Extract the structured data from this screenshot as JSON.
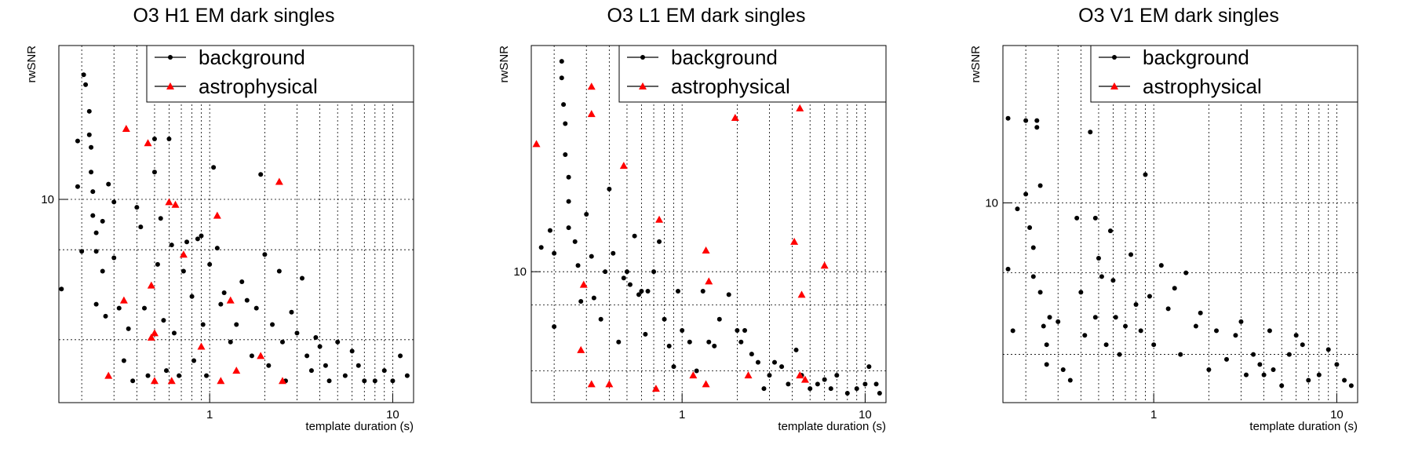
{
  "chart_data": [
    {
      "type": "scatter",
      "title": "O3 H1 EM dark singles",
      "xlabel": "template duration (s)",
      "ylabel": "rwSNR",
      "xscale": "log",
      "yscale": "log",
      "xlim": [
        0.15,
        13
      ],
      "ylim": [
        4.6,
        18
      ],
      "xticks": [
        {
          "value": 1,
          "label": "1"
        },
        {
          "value": 10,
          "label": "10"
        }
      ],
      "yticks": [
        {
          "value": 10,
          "label": "10"
        }
      ],
      "extra_ygrid": [
        8.25,
        5.85
      ],
      "grid": true,
      "legend_position": "top-right",
      "series": [
        {
          "name": "background",
          "marker": "circle",
          "color": "#000000",
          "x": [
            0.155,
            0.19,
            0.19,
            0.2,
            0.205,
            0.21,
            0.22,
            0.22,
            0.225,
            0.225,
            0.23,
            0.23,
            0.24,
            0.24,
            0.24,
            0.26,
            0.26,
            0.27,
            0.28,
            0.3,
            0.3,
            0.32,
            0.34,
            0.36,
            0.38,
            0.4,
            0.42,
            0.44,
            0.46,
            0.5,
            0.5,
            0.52,
            0.54,
            0.56,
            0.58,
            0.6,
            0.62,
            0.64,
            0.68,
            0.72,
            0.75,
            0.8,
            0.82,
            0.86,
            0.9,
            0.92,
            0.96,
            1.0,
            1.05,
            1.1,
            1.15,
            1.2,
            1.3,
            1.4,
            1.5,
            1.6,
            1.7,
            1.8,
            1.9,
            2.0,
            2.1,
            2.2,
            2.4,
            2.5,
            2.6,
            2.8,
            3.0,
            3.2,
            3.4,
            3.6,
            3.8,
            4.0,
            4.3,
            4.5,
            5.0,
            5.5,
            6.0,
            6.5,
            7.0,
            8.0,
            9.0,
            10.0,
            11.0,
            12.0
          ],
          "y": [
            7.1,
            12.5,
            10.5,
            8.2,
            16.1,
            15.5,
            14.0,
            12.8,
            12.2,
            11.1,
            10.3,
            9.4,
            8.8,
            8.2,
            6.7,
            9.2,
            7.6,
            6.4,
            10.6,
            9.9,
            8.0,
            6.6,
            5.4,
            6.1,
            5.0,
            9.7,
            9.0,
            6.6,
            5.1,
            12.6,
            11.1,
            7.8,
            9.3,
            6.3,
            5.2,
            12.6,
            8.4,
            6.0,
            5.1,
            7.6,
            8.5,
            6.9,
            5.4,
            8.6,
            8.7,
            6.2,
            5.1,
            7.8,
            11.3,
            8.3,
            6.7,
            7.0,
            5.8,
            6.2,
            7.3,
            6.8,
            5.5,
            6.6,
            11.0,
            8.1,
            5.3,
            6.2,
            7.6,
            5.8,
            5.0,
            6.5,
            6.0,
            7.4,
            5.5,
            5.2,
            5.9,
            5.7,
            5.3,
            5.0,
            5.8,
            5.1,
            5.6,
            5.3,
            5.0,
            5.0,
            5.2,
            5.0,
            5.5,
            5.1
          ]
        },
        {
          "name": "astrophysical",
          "marker": "triangle",
          "color": "#ff0000",
          "x": [
            0.28,
            0.35,
            0.34,
            0.46,
            0.48,
            0.5,
            0.48,
            0.5,
            0.6,
            0.62,
            0.65,
            0.72,
            0.9,
            1.1,
            1.15,
            1.3,
            1.4,
            1.9,
            2.4,
            2.5
          ],
          "y": [
            5.1,
            13.1,
            6.8,
            12.4,
            7.2,
            6.0,
            5.9,
            5.0,
            9.9,
            5.0,
            9.8,
            8.1,
            5.7,
            9.4,
            5.0,
            6.8,
            5.2,
            5.5,
            10.7,
            5.0
          ]
        }
      ]
    },
    {
      "type": "scatter",
      "title": "O3 L1 EM dark singles",
      "xlabel": "template duration (s)",
      "ylabel": "rwSNR",
      "xscale": "log",
      "yscale": "log",
      "xlim": [
        0.15,
        13
      ],
      "ylim": [
        6.6,
        20.5
      ],
      "xticks": [
        {
          "value": 1,
          "label": "1"
        },
        {
          "value": 10,
          "label": "10"
        }
      ],
      "yticks": [
        {
          "value": 10,
          "label": "10"
        }
      ],
      "extra_ygrid": [
        9.0,
        7.3
      ],
      "grid": true,
      "legend_position": "top-right",
      "series": [
        {
          "name": "background",
          "marker": "circle",
          "color": "#000000",
          "x": [
            0.17,
            0.19,
            0.2,
            0.2,
            0.22,
            0.22,
            0.225,
            0.23,
            0.23,
            0.24,
            0.24,
            0.24,
            0.26,
            0.27,
            0.28,
            0.3,
            0.32,
            0.33,
            0.36,
            0.38,
            0.4,
            0.42,
            0.45,
            0.48,
            0.5,
            0.52,
            0.55,
            0.58,
            0.6,
            0.63,
            0.65,
            0.7,
            0.75,
            0.8,
            0.85,
            0.9,
            0.95,
            1.0,
            1.1,
            1.2,
            1.3,
            1.4,
            1.5,
            1.6,
            1.8,
            2.0,
            2.1,
            2.2,
            2.4,
            2.6,
            2.8,
            3.0,
            3.2,
            3.5,
            3.8,
            4.2,
            4.5,
            5.0,
            5.5,
            6.0,
            6.5,
            7.0,
            8.0,
            9.0,
            10.0,
            10.5,
            11.5,
            12.0
          ],
          "y": [
            10.8,
            11.4,
            10.6,
            8.4,
            19.5,
            18.5,
            17.0,
            16.0,
            14.5,
            13.5,
            12.5,
            11.5,
            11.0,
            10.2,
            9.1,
            12.0,
            10.5,
            9.2,
            8.6,
            10.0,
            13.0,
            10.6,
            8.0,
            9.8,
            10.0,
            9.6,
            11.2,
            9.3,
            9.4,
            8.2,
            9.4,
            10.0,
            11.0,
            8.6,
            7.9,
            7.4,
            9.4,
            8.3,
            8.0,
            7.3,
            9.4,
            8.0,
            7.9,
            8.6,
            9.3,
            8.3,
            8.0,
            8.3,
            7.7,
            7.5,
            6.9,
            7.2,
            7.5,
            7.4,
            7.0,
            7.8,
            7.2,
            6.9,
            7.0,
            7.1,
            6.9,
            7.2,
            6.8,
            6.9,
            7.0,
            7.4,
            7.0,
            6.8
          ]
        },
        {
          "name": "astrophysical",
          "marker": "triangle",
          "color": "#ff0000",
          "x": [
            0.16,
            0.29,
            0.32,
            0.32,
            0.32,
            0.28,
            0.4,
            0.48,
            0.75,
            0.72,
            1.15,
            1.35,
            1.4,
            1.35,
            1.95,
            2.3,
            4.1,
            4.4,
            4.5,
            4.4,
            4.7,
            6.0
          ],
          "y": [
            15.0,
            9.6,
            18.0,
            16.5,
            7.0,
            7.8,
            7.0,
            14.0,
            11.8,
            6.9,
            7.2,
            10.7,
            9.7,
            7.0,
            16.3,
            7.2,
            11.0,
            16.8,
            9.3,
            7.2,
            7.1,
            10.2
          ]
        }
      ]
    },
    {
      "type": "scatter",
      "title": "O3 V1 EM dark singles",
      "xlabel": "template duration (s)",
      "ylabel": "rwSNR",
      "xscale": "log",
      "yscale": "log",
      "xlim": [
        0.15,
        13
      ],
      "ylim": [
        5.1,
        17
      ],
      "xticks": [
        {
          "value": 1,
          "label": "1"
        },
        {
          "value": 10,
          "label": "10"
        }
      ],
      "yticks": [
        {
          "value": 10,
          "label": "10"
        }
      ],
      "extra_ygrid": [
        7.9,
        6.0
      ],
      "grid": true,
      "legend_position": "top-right",
      "series": [
        {
          "name": "background",
          "marker": "circle",
          "color": "#000000",
          "x": [
            0.16,
            0.16,
            0.17,
            0.18,
            0.2,
            0.2,
            0.21,
            0.22,
            0.22,
            0.23,
            0.23,
            0.24,
            0.24,
            0.25,
            0.26,
            0.26,
            0.27,
            0.3,
            0.32,
            0.35,
            0.38,
            0.4,
            0.42,
            0.45,
            0.48,
            0.48,
            0.5,
            0.52,
            0.55,
            0.58,
            0.6,
            0.62,
            0.65,
            0.7,
            0.75,
            0.8,
            0.85,
            0.9,
            0.95,
            1.0,
            1.1,
            1.2,
            1.3,
            1.4,
            1.5,
            1.7,
            1.8,
            2.0,
            2.2,
            2.5,
            2.8,
            3.0,
            3.2,
            3.5,
            3.8,
            4.0,
            4.3,
            4.5,
            5.0,
            5.5,
            6.0,
            6.5,
            7.0,
            8.0,
            9.0,
            10.0,
            11.0,
            12.0
          ],
          "y": [
            13.3,
            8.0,
            6.5,
            9.8,
            13.2,
            10.3,
            9.2,
            8.6,
            7.8,
            13.2,
            12.9,
            10.6,
            7.4,
            6.6,
            5.8,
            6.2,
            6.8,
            6.7,
            5.7,
            5.5,
            9.5,
            7.4,
            6.4,
            12.7,
            9.5,
            6.8,
            8.3,
            7.8,
            6.2,
            9.1,
            7.7,
            6.8,
            6.0,
            6.6,
            8.4,
            7.1,
            6.5,
            11.0,
            7.3,
            6.2,
            8.1,
            7.0,
            7.5,
            6.0,
            7.9,
            6.6,
            6.9,
            5.7,
            6.5,
            5.9,
            6.4,
            6.7,
            5.6,
            6.0,
            5.8,
            5.6,
            6.5,
            5.7,
            5.4,
            6.0,
            6.4,
            6.2,
            5.5,
            5.6,
            6.1,
            5.8,
            5.5,
            5.4
          ]
        }
      ]
    }
  ]
}
